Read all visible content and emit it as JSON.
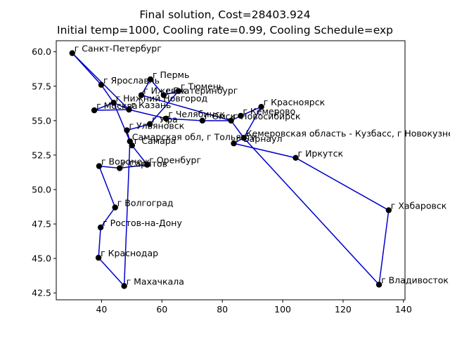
{
  "chart_data": {
    "type": "line",
    "title": "Final solution, Cost=28403.924",
    "subtitle": "Initial temp=1000, Cooling rate=0.99, Cooling Schedule=exp",
    "xlabel": "",
    "ylabel": "",
    "xlim": [
      25,
      140.5
    ],
    "ylim": [
      42.0,
      60.8
    ],
    "xticks": [
      40,
      60,
      80,
      100,
      120,
      140
    ],
    "yticks": [
      42.5,
      45.0,
      47.5,
      50.0,
      52.5,
      55.0,
      57.5,
      60.0
    ],
    "line_color": "#0000cc",
    "marker_color": "#000000",
    "points": [
      {
        "name": "г Санкт-Петербург",
        "x": 30.3,
        "y": 59.9
      },
      {
        "name": "г Ярославль",
        "x": 39.9,
        "y": 57.6
      },
      {
        "name": "г Москва",
        "x": 37.6,
        "y": 55.75
      },
      {
        "name": "г Нижний Новгород",
        "x": 44.0,
        "y": 56.3
      },
      {
        "name": "г Пермь",
        "x": 56.2,
        "y": 58.0
      },
      {
        "name": "г Тюмень",
        "x": 65.5,
        "y": 57.15
      },
      {
        "name": "г Ижевск",
        "x": 53.2,
        "y": 56.85
      },
      {
        "name": "г Екатеринбург",
        "x": 60.6,
        "y": 56.85
      },
      {
        "name": "г Казань",
        "x": 49.1,
        "y": 55.8
      },
      {
        "name": "г Челябинск",
        "x": 61.4,
        "y": 55.15
      },
      {
        "name": "г Омск",
        "x": 73.4,
        "y": 55.0
      },
      {
        "name": "г Новосибирск",
        "x": 82.9,
        "y": 55.0
      },
      {
        "name": "г Кемерово",
        "x": 86.1,
        "y": 55.35
      },
      {
        "name": "г Красноярск",
        "x": 92.9,
        "y": 56.0
      },
      {
        "name": "Кемеровская область - Кузбасс, г Новокузнецк",
        "x": 87.1,
        "y": 53.75
      },
      {
        "name": "г Барнаул",
        "x": 83.8,
        "y": 53.35
      },
      {
        "name": "г Иркутск",
        "x": 104.3,
        "y": 52.3
      },
      {
        "name": "г Хабаровск",
        "x": 135.1,
        "y": 48.5
      },
      {
        "name": "г Владивосток",
        "x": 131.9,
        "y": 43.1
      },
      {
        "name": "г Уфа",
        "x": 56.0,
        "y": 54.75
      },
      {
        "name": "г Ульяновск",
        "x": 48.4,
        "y": 54.3
      },
      {
        "name": "Самарская обл, г Тольятти",
        "x": 49.4,
        "y": 53.5
      },
      {
        "name": "г Самара",
        "x": 50.1,
        "y": 53.2
      },
      {
        "name": "г Оренбург",
        "x": 55.1,
        "y": 51.8
      },
      {
        "name": "г Саратов",
        "x": 46.0,
        "y": 51.55
      },
      {
        "name": "г Воронеж",
        "x": 39.2,
        "y": 51.7
      },
      {
        "name": "г Волгоград",
        "x": 44.5,
        "y": 48.7
      },
      {
        "name": "г Ростов-на-Дону",
        "x": 39.7,
        "y": 47.25
      },
      {
        "name": "г Краснодар",
        "x": 39.0,
        "y": 45.05
      },
      {
        "name": "г Махачкала",
        "x": 47.5,
        "y": 43.0
      }
    ],
    "route": [
      0,
      1,
      3,
      2,
      8,
      9,
      10,
      11,
      12,
      13,
      14,
      15,
      16,
      17,
      18,
      14,
      11,
      6,
      4,
      7,
      5,
      19,
      20,
      21,
      22,
      23,
      24,
      25,
      26,
      27,
      28,
      29,
      21,
      3,
      8,
      0
    ]
  }
}
